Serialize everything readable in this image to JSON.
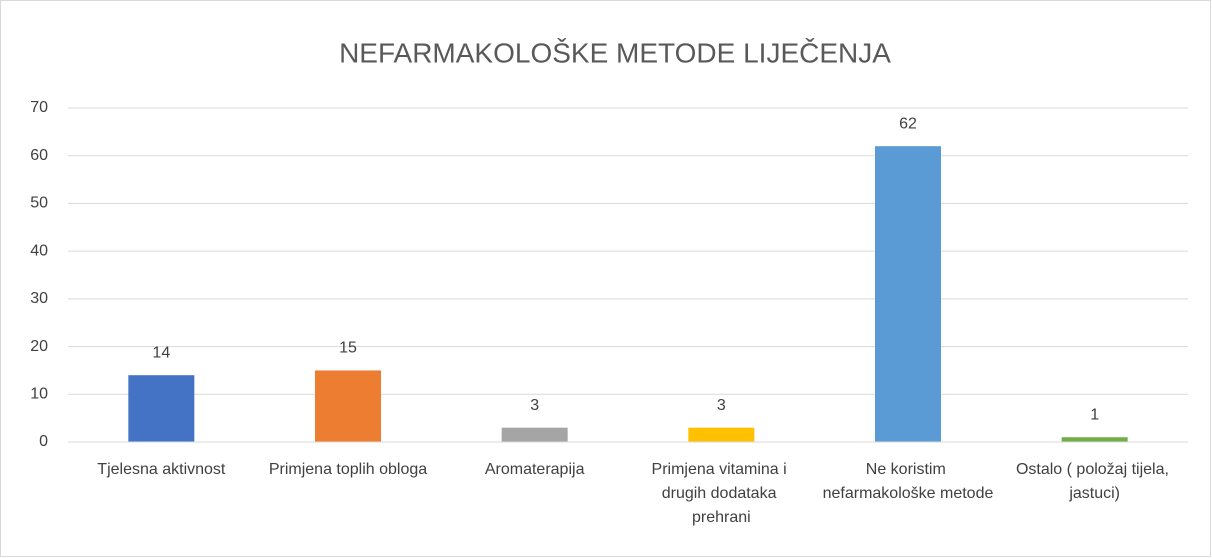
{
  "chart_data": {
    "type": "bar",
    "title": "NEFARMAKOLOŠKE METODE LIJEČENJA",
    "categories": [
      "Tjelesna aktivnost",
      "Primjena toplih obloga",
      "Aromaterapija",
      "Primjena vitamina i drugih dodataka prehrani",
      "Ne koristim nefarmakološke metode",
      "Ostalo ( položaj tijela, jastuci)"
    ],
    "values": [
      14,
      15,
      3,
      3,
      62,
      1
    ],
    "colors": [
      "#4472c4",
      "#ed7d31",
      "#a5a5a5",
      "#ffc000",
      "#5b9bd5",
      "#70ad47"
    ],
    "ylim": [
      0,
      70
    ],
    "yticks": [
      0,
      10,
      20,
      30,
      40,
      50,
      60,
      70
    ],
    "grid": true
  }
}
